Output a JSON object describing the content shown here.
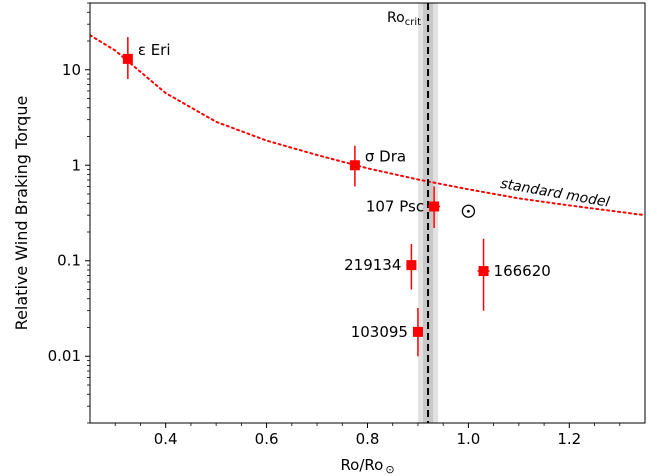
{
  "chart_data": {
    "type": "scatter",
    "xlabel": "Ro/Ro",
    "xlabel_sub": "⊙",
    "ylabel": "Relative Wind Braking Torque",
    "xlim": [
      0.25,
      1.35
    ],
    "ylim": [
      0.002,
      50
    ],
    "yscale": "log",
    "x_ticks": [
      0.4,
      0.6,
      0.8,
      1.0,
      1.2
    ],
    "x_tick_labels": [
      "0.4",
      "0.6",
      "0.8",
      "1.0",
      "1.2"
    ],
    "y_ticks": [
      0.01,
      0.1,
      1,
      10
    ],
    "y_tick_labels": [
      "0.01",
      "0.1",
      "1",
      "10"
    ],
    "ro_crit": {
      "label": "Ro",
      "label_sub": "crit",
      "x": 0.92,
      "band_inner": [
        0.91,
        0.93
      ],
      "band_outer": [
        0.9,
        0.94
      ]
    },
    "model": {
      "name": "standard model",
      "color": "#ff0000",
      "points": [
        {
          "x": 0.25,
          "y": 23
        },
        {
          "x": 0.3,
          "y": 15.9
        },
        {
          "x": 0.4,
          "y": 5.7
        },
        {
          "x": 0.5,
          "y": 2.85
        },
        {
          "x": 0.6,
          "y": 1.81
        },
        {
          "x": 0.7,
          "y": 1.28
        },
        {
          "x": 0.8,
          "y": 0.93
        },
        {
          "x": 0.9,
          "y": 0.71
        },
        {
          "x": 1.0,
          "y": 0.56
        },
        {
          "x": 1.1,
          "y": 0.45
        },
        {
          "x": 1.2,
          "y": 0.38
        },
        {
          "x": 1.35,
          "y": 0.3
        }
      ]
    },
    "stars": [
      {
        "label": "ε Eri",
        "x": 0.325,
        "y": 13,
        "x_err": 0.006,
        "y_low": 8,
        "y_high": 22,
        "label_side": "right"
      },
      {
        "label": "σ Dra",
        "x": 0.775,
        "y": 1.0,
        "x_err": 0.006,
        "y_low": 0.6,
        "y_high": 1.6,
        "label_side": "right"
      },
      {
        "label": "107 Psc",
        "x": 0.932,
        "y": 0.37,
        "x_err": 0.012,
        "y_low": 0.22,
        "y_high": 0.6,
        "label_side": "left"
      },
      {
        "label": "219134",
        "x": 0.887,
        "y": 0.09,
        "x_err": 0.01,
        "y_low": 0.05,
        "y_high": 0.15,
        "label_side": "left"
      },
      {
        "label": "166620",
        "x": 1.03,
        "y": 0.078,
        "x_err": 0.012,
        "y_low": 0.03,
        "y_high": 0.17,
        "label_side": "right"
      },
      {
        "label": "103095",
        "x": 0.9,
        "y": 0.018,
        "x_err": 0.01,
        "y_low": 0.01,
        "y_high": 0.032,
        "label_side": "left"
      }
    ],
    "sun": {
      "x": 1.0,
      "y": 0.33,
      "symbol": "⊙"
    },
    "colors": {
      "points": "#ff0000",
      "crit_line": "#000000",
      "band_inner": "#c8c8c8",
      "band_outer": "#e2e2e2"
    }
  }
}
